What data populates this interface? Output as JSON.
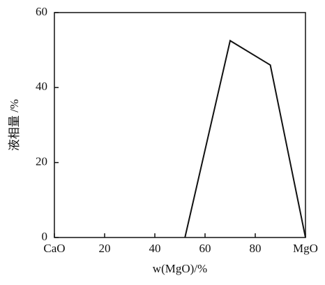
{
  "chart_data": {
    "type": "line",
    "x_label": "w(MgO)/%",
    "y_label": "液相量 /%",
    "x": [
      52,
      70,
      86,
      100
    ],
    "series": [
      {
        "color": "#111111",
        "values": [
          0,
          52.5,
          46,
          0
        ]
      }
    ],
    "xlim": [
      0,
      100
    ],
    "xticks": [
      {
        "value": 0,
        "label": "CaO"
      },
      20,
      40,
      60,
      80,
      {
        "value": 100,
        "label": "MgO"
      }
    ],
    "ylim": [
      0,
      60
    ],
    "yticks": [
      0,
      20,
      40,
      60
    ],
    "grid": false
  }
}
